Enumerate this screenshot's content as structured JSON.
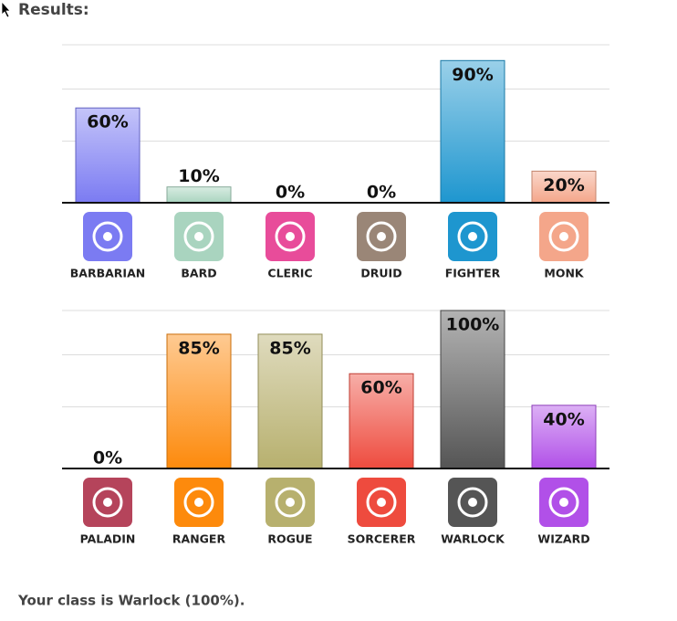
{
  "header": "Results:",
  "chart_data": [
    {
      "type": "bar",
      "categories": [
        "BARBARIAN",
        "BARD",
        "CLERIC",
        "DRUID",
        "FIGHTER",
        "MONK"
      ],
      "values": [
        60,
        10,
        0,
        0,
        90,
        20
      ],
      "value_labels": [
        "60%",
        "10%",
        "0%",
        "0%",
        "90%",
        "20%"
      ],
      "colors": [
        "#7b7bf2",
        "#a9d4bf",
        "#e84c9a",
        "#9a8677",
        "#1e96cf",
        "#f4a68a"
      ],
      "ylim": [
        0,
        100
      ],
      "yticks": [
        0,
        39,
        72,
        100
      ],
      "grid": true
    },
    {
      "type": "bar",
      "categories": [
        "PALADIN",
        "RANGER",
        "ROGUE",
        "SORCERER",
        "WARLOCK",
        "WIZARD"
      ],
      "values": [
        0,
        85,
        85,
        60,
        100,
        40
      ],
      "value_labels": [
        "0%",
        "85%",
        "85%",
        "60%",
        "100%",
        "40%"
      ],
      "colors": [
        "#b5445b",
        "#fd8a0c",
        "#b7b06e",
        "#ee4b3e",
        "#555555",
        "#b150e8"
      ],
      "ylim": [
        0,
        100
      ],
      "yticks": [
        0,
        39,
        72,
        100
      ],
      "grid": true
    }
  ],
  "footer": "Your class is Warlock (100%)."
}
